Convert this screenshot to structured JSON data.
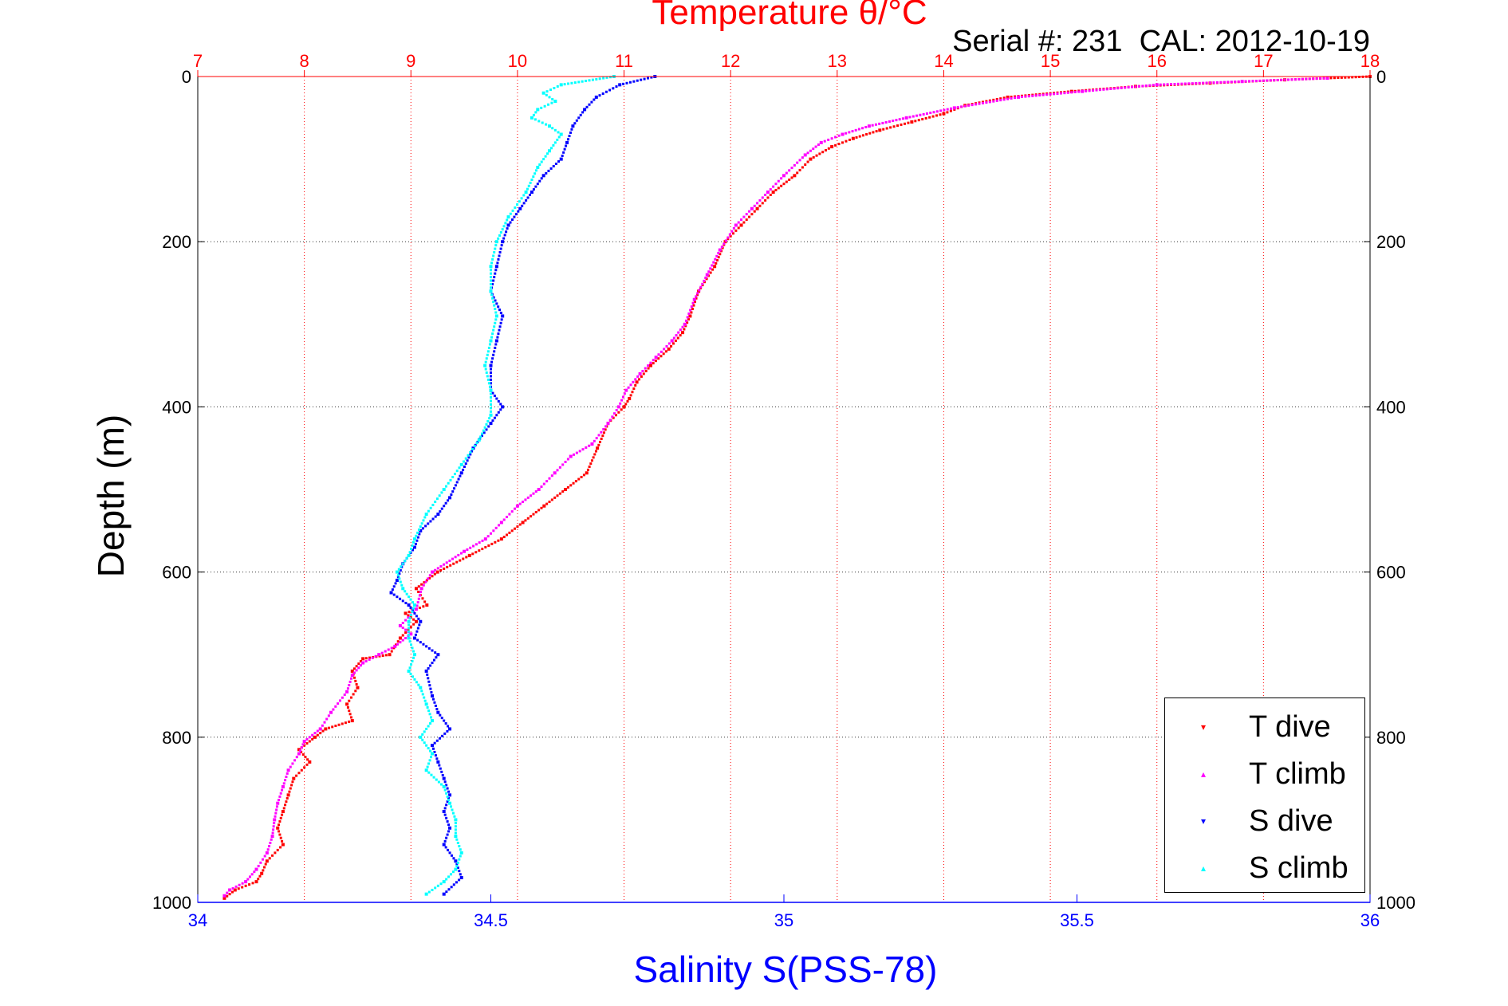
{
  "chart_data": {
    "type": "scatter",
    "title": "Temperature θ/°C",
    "subtitle": "Serial #: 231  CAL: 2012-10-19",
    "ylabel": "Depth (m)",
    "xlabel": "Salinity S(PSS-78)",
    "y_axis": {
      "range": [
        0,
        1000
      ],
      "reversed": true,
      "ticks": [
        0,
        200,
        400,
        600,
        800,
        1000
      ],
      "grid": true
    },
    "x_top_axis": {
      "label": "Temperature θ/°C",
      "range": [
        7,
        18
      ],
      "ticks": [
        7,
        8,
        9,
        10,
        11,
        12,
        13,
        14,
        15,
        16,
        17,
        18
      ],
      "color": "#ff0000",
      "grid": true
    },
    "x_bottom_axis": {
      "label": "Salinity S(PSS-78)",
      "range": [
        34,
        36
      ],
      "ticks": [
        "34",
        "34.5",
        "35",
        "35.5",
        "36"
      ],
      "tick_values": [
        34,
        34.5,
        35,
        35.5,
        36
      ],
      "color": "#0000ff",
      "grid": false
    },
    "legend": {
      "placement": "bottom-right"
    },
    "series": [
      {
        "name": "T dive",
        "axis": "temperature",
        "color": "#ff0000",
        "marker": "triangle-down",
        "points": [
          [
            18,
            0
          ],
          [
            17.2,
            4
          ],
          [
            16.5,
            8
          ],
          [
            15.8,
            12
          ],
          [
            15.2,
            18
          ],
          [
            14.6,
            25
          ],
          [
            14.2,
            35
          ],
          [
            14,
            45
          ],
          [
            13.7,
            55
          ],
          [
            13.4,
            65
          ],
          [
            13.15,
            75
          ],
          [
            12.95,
            85
          ],
          [
            12.75,
            100
          ],
          [
            12.6,
            120
          ],
          [
            12.4,
            140
          ],
          [
            12.25,
            160
          ],
          [
            12.1,
            180
          ],
          [
            11.95,
            200
          ],
          [
            11.85,
            230
          ],
          [
            11.7,
            260
          ],
          [
            11.62,
            290
          ],
          [
            11.55,
            310
          ],
          [
            11.42,
            330
          ],
          [
            11.25,
            350
          ],
          [
            11.12,
            370
          ],
          [
            11.05,
            390
          ],
          [
            11.0,
            400
          ],
          [
            10.85,
            420
          ],
          [
            10.75,
            450
          ],
          [
            10.65,
            480
          ],
          [
            10.45,
            500
          ],
          [
            10.25,
            520
          ],
          [
            10.05,
            540
          ],
          [
            9.85,
            560
          ],
          [
            9.55,
            580
          ],
          [
            9.25,
            600
          ],
          [
            9.05,
            620
          ],
          [
            9.15,
            640
          ],
          [
            8.95,
            650
          ],
          [
            9.05,
            660
          ],
          [
            8.9,
            680
          ],
          [
            8.8,
            700
          ],
          [
            8.55,
            705
          ],
          [
            8.45,
            720
          ],
          [
            8.5,
            740
          ],
          [
            8.4,
            760
          ],
          [
            8.45,
            780
          ],
          [
            8.2,
            790
          ],
          [
            8.1,
            800
          ],
          [
            7.95,
            815
          ],
          [
            8.05,
            830
          ],
          [
            7.9,
            850
          ],
          [
            7.85,
            870
          ],
          [
            7.8,
            890
          ],
          [
            7.75,
            910
          ],
          [
            7.8,
            930
          ],
          [
            7.65,
            950
          ],
          [
            7.6,
            965
          ],
          [
            7.55,
            975
          ],
          [
            7.35,
            985
          ],
          [
            7.25,
            995
          ]
        ]
      },
      {
        "name": "T climb",
        "axis": "temperature",
        "color": "#ff00ff",
        "marker": "triangle-up",
        "points": [
          [
            17.6,
            2
          ],
          [
            16.8,
            6
          ],
          [
            16.0,
            10
          ],
          [
            15.3,
            18
          ],
          [
            14.7,
            25
          ],
          [
            14.1,
            38
          ],
          [
            13.65,
            50
          ],
          [
            13.3,
            60
          ],
          [
            13.05,
            70
          ],
          [
            12.85,
            80
          ],
          [
            12.7,
            95
          ],
          [
            12.5,
            120
          ],
          [
            12.35,
            140
          ],
          [
            12.2,
            160
          ],
          [
            12.05,
            180
          ],
          [
            11.9,
            210
          ],
          [
            11.78,
            240
          ],
          [
            11.66,
            270
          ],
          [
            11.57,
            300
          ],
          [
            11.45,
            320
          ],
          [
            11.3,
            340
          ],
          [
            11.15,
            360
          ],
          [
            11.02,
            380
          ],
          [
            10.95,
            400
          ],
          [
            10.85,
            420
          ],
          [
            10.7,
            445
          ],
          [
            10.5,
            460
          ],
          [
            10.35,
            480
          ],
          [
            10.2,
            500
          ],
          [
            10.0,
            520
          ],
          [
            9.85,
            540
          ],
          [
            9.7,
            560
          ],
          [
            9.5,
            575
          ],
          [
            9.2,
            600
          ],
          [
            9.1,
            620
          ],
          [
            9.05,
            645
          ],
          [
            8.9,
            665
          ],
          [
            9.0,
            675
          ],
          [
            8.85,
            690
          ],
          [
            8.7,
            700
          ],
          [
            8.55,
            710
          ],
          [
            8.45,
            725
          ],
          [
            8.4,
            745
          ],
          [
            8.25,
            770
          ],
          [
            8.15,
            790
          ],
          [
            8.0,
            805
          ],
          [
            7.95,
            820
          ],
          [
            7.85,
            840
          ],
          [
            7.8,
            860
          ],
          [
            7.75,
            880
          ],
          [
            7.72,
            900
          ],
          [
            7.7,
            920
          ],
          [
            7.65,
            940
          ],
          [
            7.55,
            960
          ],
          [
            7.45,
            975
          ],
          [
            7.3,
            985
          ],
          [
            7.25,
            992
          ]
        ]
      },
      {
        "name": "S dive",
        "axis": "salinity",
        "color": "#0000ff",
        "marker": "triangle-down",
        "points": [
          [
            34.78,
            0
          ],
          [
            34.72,
            10
          ],
          [
            34.68,
            25
          ],
          [
            34.66,
            40
          ],
          [
            34.64,
            60
          ],
          [
            34.63,
            80
          ],
          [
            34.62,
            100
          ],
          [
            34.59,
            120
          ],
          [
            34.57,
            140
          ],
          [
            34.55,
            160
          ],
          [
            34.53,
            180
          ],
          [
            34.52,
            200
          ],
          [
            34.51,
            230
          ],
          [
            34.5,
            260
          ],
          [
            34.52,
            290
          ],
          [
            34.51,
            320
          ],
          [
            34.5,
            350
          ],
          [
            34.5,
            380
          ],
          [
            34.52,
            400
          ],
          [
            34.5,
            420
          ],
          [
            34.47,
            450
          ],
          [
            34.45,
            480
          ],
          [
            34.43,
            510
          ],
          [
            34.41,
            530
          ],
          [
            34.38,
            550
          ],
          [
            34.37,
            570
          ],
          [
            34.35,
            590
          ],
          [
            34.34,
            610
          ],
          [
            34.33,
            625
          ],
          [
            34.36,
            640
          ],
          [
            34.38,
            660
          ],
          [
            34.37,
            680
          ],
          [
            34.41,
            700
          ],
          [
            34.39,
            720
          ],
          [
            34.4,
            750
          ],
          [
            34.41,
            770
          ],
          [
            34.43,
            790
          ],
          [
            34.4,
            810
          ],
          [
            34.41,
            830
          ],
          [
            34.42,
            850
          ],
          [
            34.43,
            870
          ],
          [
            34.42,
            890
          ],
          [
            34.43,
            910
          ],
          [
            34.42,
            930
          ],
          [
            34.44,
            950
          ],
          [
            34.45,
            970
          ],
          [
            34.42,
            990
          ]
        ]
      },
      {
        "name": "S climb",
        "axis": "salinity",
        "color": "#00ffff",
        "marker": "triangle-up",
        "points": [
          [
            34.71,
            0
          ],
          [
            34.62,
            10
          ],
          [
            34.59,
            20
          ],
          [
            34.61,
            30
          ],
          [
            34.58,
            40
          ],
          [
            34.57,
            50
          ],
          [
            34.6,
            60
          ],
          [
            34.62,
            70
          ],
          [
            34.6,
            90
          ],
          [
            34.58,
            110
          ],
          [
            34.56,
            140
          ],
          [
            34.53,
            170
          ],
          [
            34.51,
            200
          ],
          [
            34.5,
            230
          ],
          [
            34.5,
            260
          ],
          [
            34.51,
            290
          ],
          [
            34.5,
            320
          ],
          [
            34.49,
            350
          ],
          [
            34.5,
            380
          ],
          [
            34.5,
            410
          ],
          [
            34.48,
            440
          ],
          [
            34.45,
            470
          ],
          [
            34.42,
            500
          ],
          [
            34.39,
            530
          ],
          [
            34.37,
            560
          ],
          [
            34.36,
            580
          ],
          [
            34.34,
            600
          ],
          [
            34.35,
            620
          ],
          [
            34.37,
            640
          ],
          [
            34.36,
            660
          ],
          [
            34.36,
            680
          ],
          [
            34.37,
            700
          ],
          [
            34.36,
            720
          ],
          [
            34.38,
            740
          ],
          [
            34.39,
            760
          ],
          [
            34.4,
            780
          ],
          [
            34.38,
            800
          ],
          [
            34.4,
            820
          ],
          [
            34.39,
            840
          ],
          [
            34.42,
            860
          ],
          [
            34.43,
            880
          ],
          [
            34.44,
            900
          ],
          [
            34.44,
            920
          ],
          [
            34.45,
            940
          ],
          [
            34.44,
            960
          ],
          [
            34.42,
            975
          ],
          [
            34.39,
            990
          ]
        ]
      }
    ]
  }
}
